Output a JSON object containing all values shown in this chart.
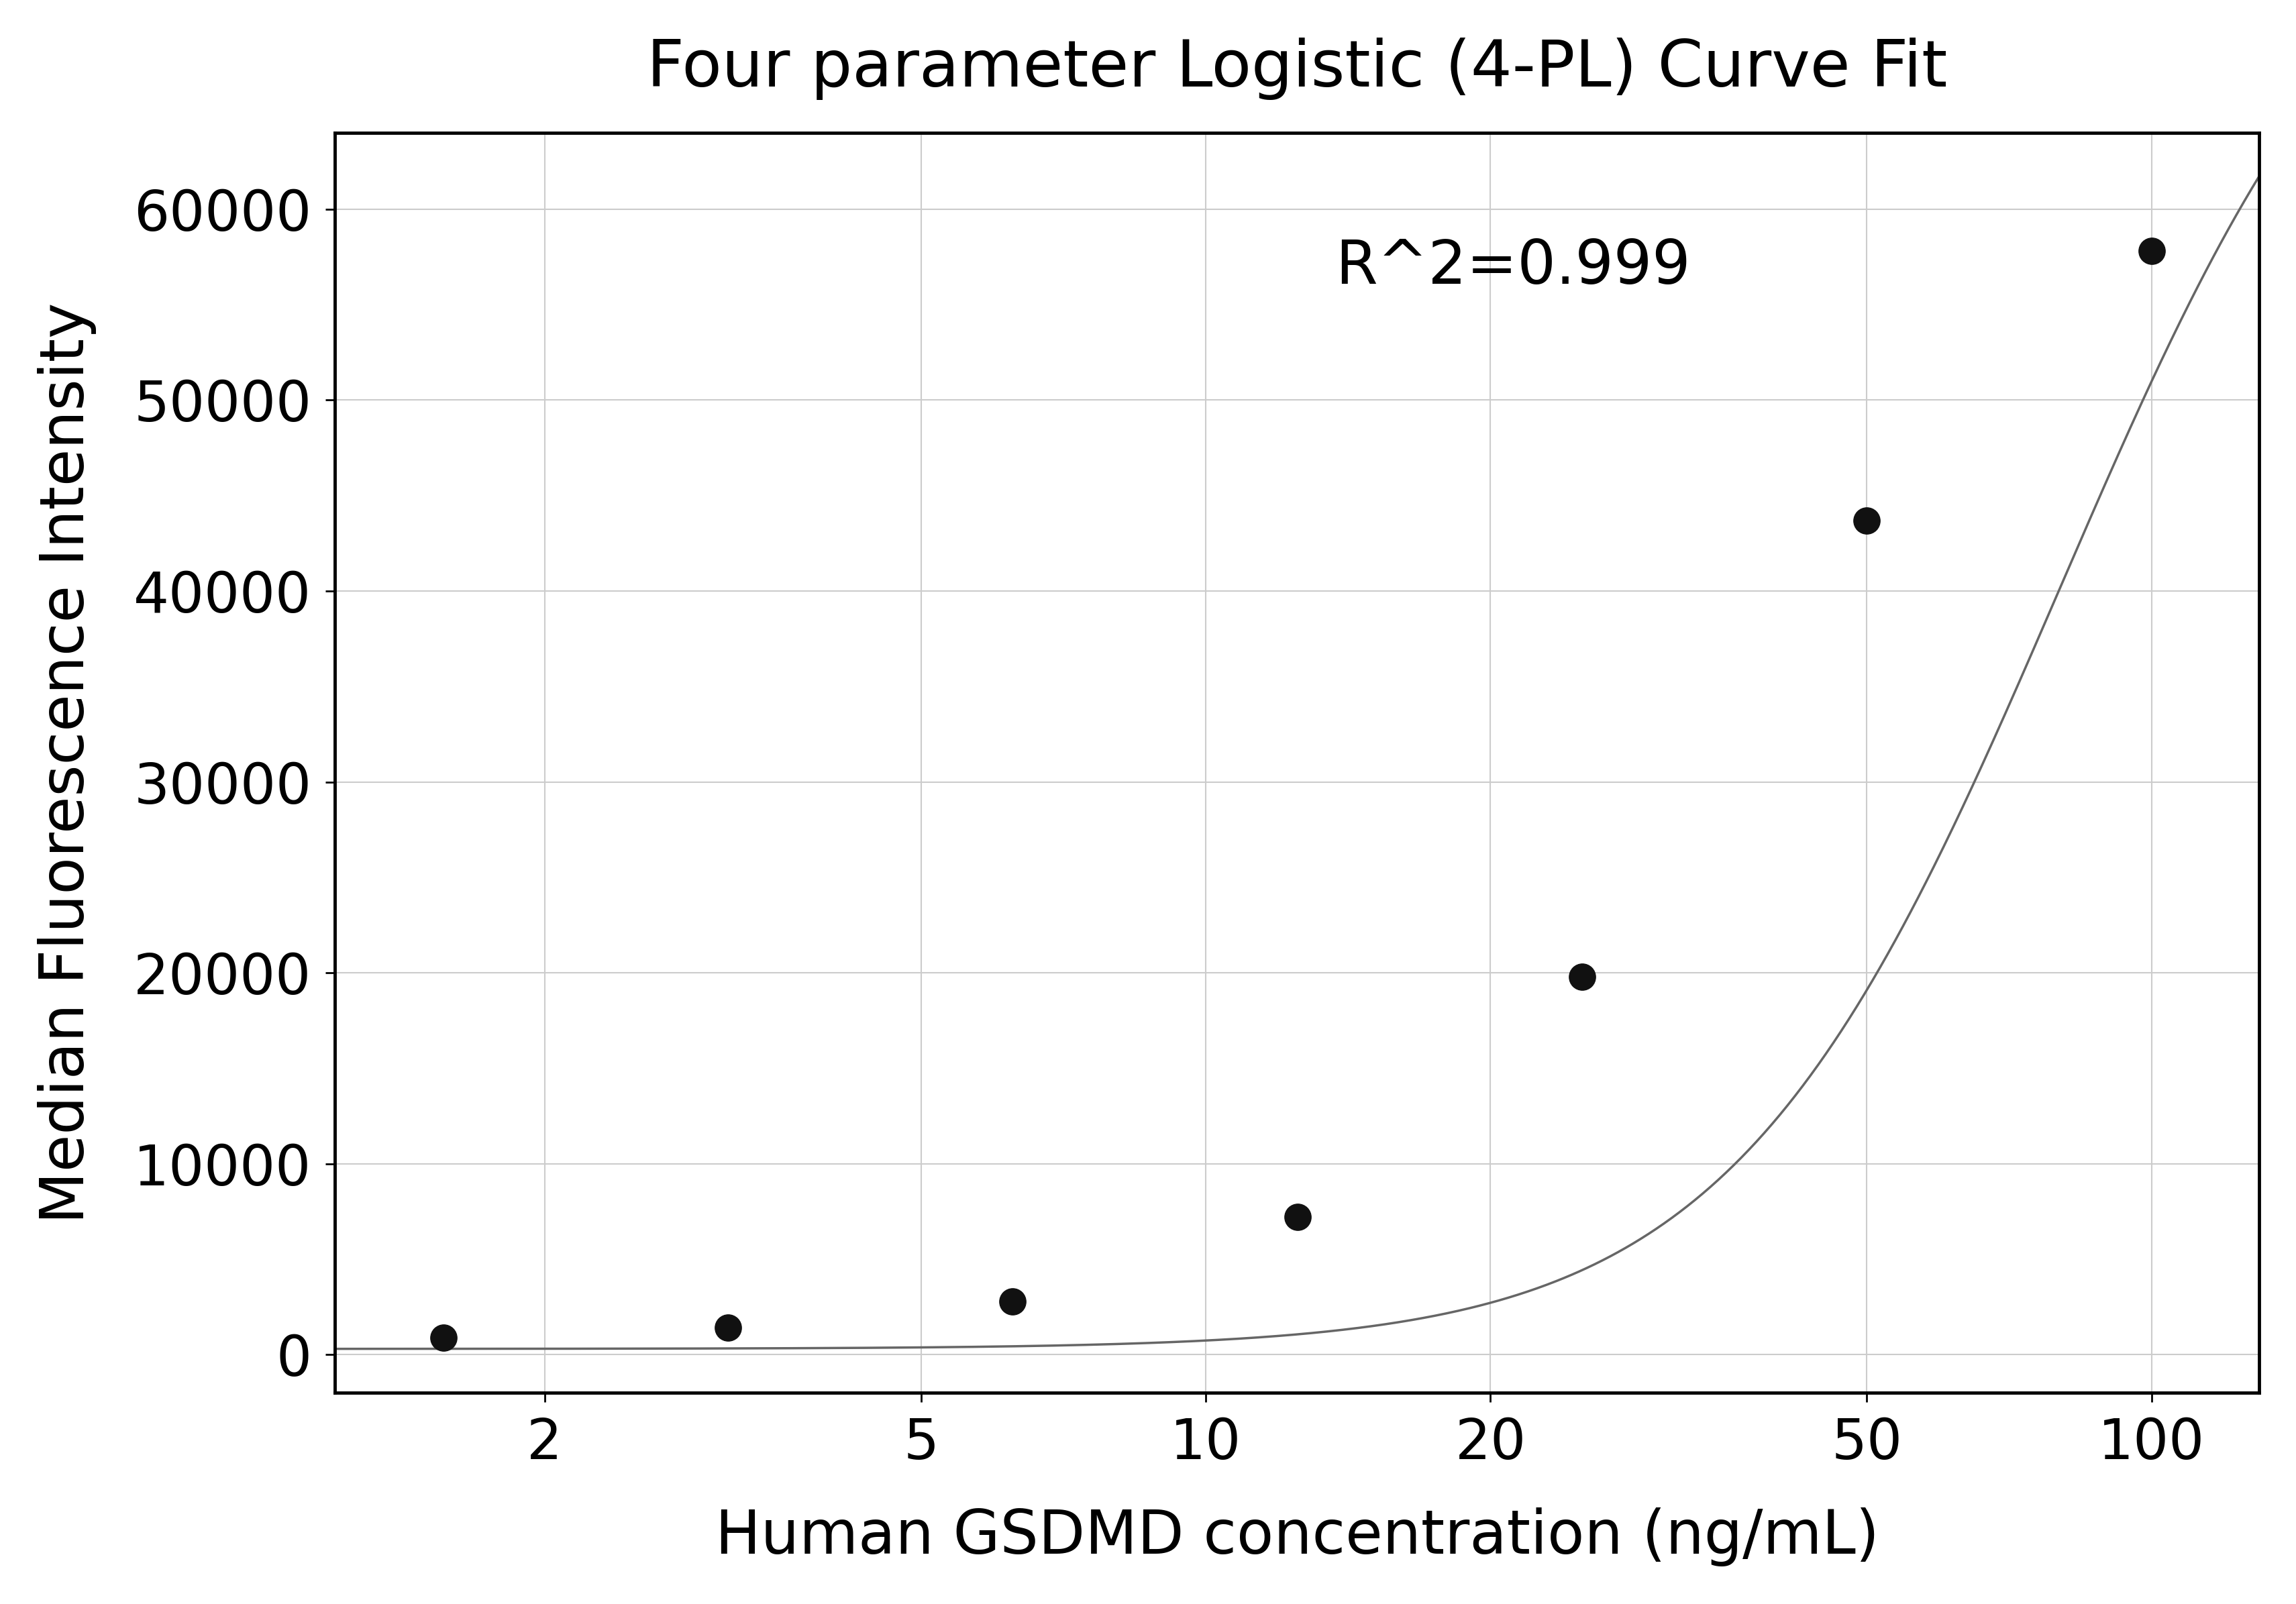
{
  "title": "Four parameter Logistic (4-PL) Curve Fit",
  "xlabel": "Human GSDMD concentration (ng/mL)",
  "ylabel": "Median Fluorescence Intensity",
  "r_squared_text": "R^2=0.999",
  "data_x": [
    1.5625,
    3.125,
    6.25,
    12.5,
    25,
    50,
    100
  ],
  "data_y": [
    900,
    1400,
    2800,
    7200,
    19800,
    43700,
    57800
  ],
  "xscale": "log",
  "xlim": [
    1.2,
    130
  ],
  "ylim": [
    -2000,
    64000
  ],
  "yticks": [
    0,
    10000,
    20000,
    30000,
    40000,
    50000,
    60000
  ],
  "ytick_labels": [
    "0",
    "10000",
    "20000",
    "30000",
    "40000",
    "50000",
    "60000"
  ],
  "xticks": [
    2,
    5,
    10,
    20,
    50,
    100
  ],
  "xtick_labels": [
    "2",
    "5",
    "10",
    "20",
    "50",
    "100"
  ],
  "grid_color": "#cccccc",
  "curve_color": "#666666",
  "dot_color": "#111111",
  "dot_size": 800,
  "background_color": "#ffffff",
  "title_fontsize": 28,
  "label_fontsize": 26,
  "tick_fontsize": 24,
  "annotation_fontsize": 26,
  "4pl_A": 300,
  "4pl_B": 2.5,
  "4pl_C": 80,
  "4pl_D": 80000
}
